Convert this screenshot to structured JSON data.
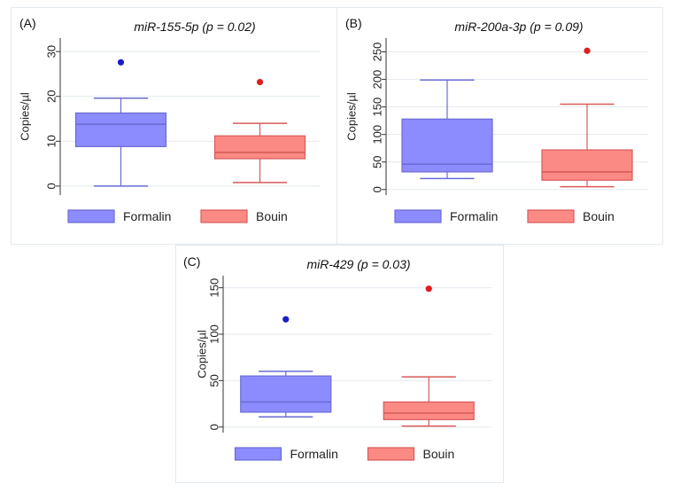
{
  "chart_data": [
    {
      "type": "box",
      "panel_label": "(A)",
      "title": "miR-155-5p (p = 0.02)",
      "xlabel": "",
      "ylabel": "Copies/µl",
      "ylim": [
        -2,
        33
      ],
      "yticks": [
        0,
        10,
        20,
        30
      ],
      "grid": true,
      "legend_position": "bottom",
      "series": [
        {
          "name": "Formalin",
          "color": "#6b6bd6",
          "fill": "#8c8cff",
          "min": 0,
          "q1": 8.8,
          "median": 13.8,
          "q3": 16.3,
          "max": 19.6,
          "outliers": [
            27.6
          ],
          "outlier_color": "#1c1cc8"
        },
        {
          "name": "Bouin",
          "color": "#d85a5a",
          "fill": "#fb8a84",
          "min": 0.8,
          "q1": 6.1,
          "median": 7.5,
          "q3": 11.2,
          "max": 14.0,
          "outliers": [
            23.2
          ],
          "outlier_color": "#e01c1c"
        }
      ]
    },
    {
      "type": "box",
      "panel_label": "(B)",
      "title": "miR-200a-3p (p = 0.09)",
      "xlabel": "",
      "ylabel": "Copies/µl",
      "ylim": [
        -10,
        275
      ],
      "yticks": [
        0,
        50,
        100,
        150,
        200,
        250
      ],
      "grid": true,
      "legend_position": "bottom",
      "series": [
        {
          "name": "Formalin",
          "color": "#6b6bd6",
          "fill": "#8c8cff",
          "min": 20,
          "q1": 32,
          "median": 46,
          "q3": 128,
          "max": 199,
          "outliers": [],
          "outlier_color": "#1c1cc8"
        },
        {
          "name": "Bouin",
          "color": "#d85a5a",
          "fill": "#fb8a84",
          "min": 5,
          "q1": 17,
          "median": 32,
          "q3": 72,
          "max": 155,
          "outliers": [
            252
          ],
          "outlier_color": "#e01c1c"
        }
      ]
    },
    {
      "type": "box",
      "panel_label": "(C)",
      "title": "miR-429 (p = 0.03)",
      "xlabel": "",
      "ylabel": "Copies/µl",
      "ylim": [
        -6,
        163
      ],
      "yticks": [
        0,
        50,
        100,
        150
      ],
      "grid": true,
      "legend_position": "bottom",
      "series": [
        {
          "name": "Formalin",
          "color": "#6b6bd6",
          "fill": "#8c8cff",
          "min": 11,
          "q1": 16,
          "median": 27,
          "q3": 55,
          "max": 60,
          "outliers": [
            116
          ],
          "outlier_color": "#1c1cc8"
        },
        {
          "name": "Bouin",
          "color": "#d85a5a",
          "fill": "#fb8a84",
          "min": 1,
          "q1": 8,
          "median": 15,
          "q3": 27,
          "max": 54,
          "outliers": [
            149
          ],
          "outlier_color": "#e01c1c"
        }
      ]
    }
  ]
}
